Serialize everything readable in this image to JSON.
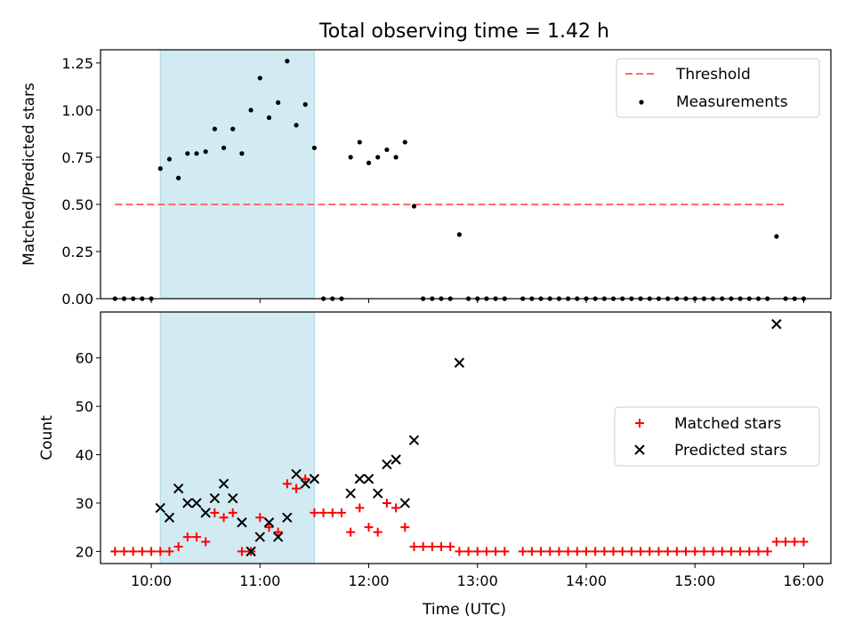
{
  "title": "Total observing time = 1.42 h",
  "x_ticks": [
    "10:00",
    "11:00",
    "12:00",
    "13:00",
    "14:00",
    "15:00",
    "16:00"
  ],
  "xlabel": "Time (UTC)",
  "shade_span": [
    "10:05",
    "11:30"
  ],
  "colors": {
    "shade": "#add8e6",
    "threshold": "#ff6b6b",
    "measurement": "#000000",
    "matched": "#ff0000",
    "predicted": "#000000"
  },
  "chart_data": [
    {
      "type": "scatter",
      "ylabel": "Matched/Predicted stars",
      "xlim": [
        "09:32",
        "16:15"
      ],
      "ylim": [
        0,
        1.32
      ],
      "y_ticks": [
        "0.00",
        "0.25",
        "0.50",
        "0.75",
        "1.00",
        "1.25"
      ],
      "legend_position": "top-right",
      "threshold": {
        "name": "Threshold",
        "y": 0.5,
        "x_range": [
          "09:40",
          "15:50"
        ]
      },
      "series": [
        {
          "name": "Measurements",
          "points": [
            [
              "09:40",
              0
            ],
            [
              "09:45",
              0
            ],
            [
              "09:50",
              0
            ],
            [
              "09:55",
              0
            ],
            [
              "10:00",
              0
            ],
            [
              "10:05",
              0.69
            ],
            [
              "10:10",
              0.74
            ],
            [
              "10:15",
              0.64
            ],
            [
              "10:20",
              0.77
            ],
            [
              "10:25",
              0.77
            ],
            [
              "10:30",
              0.78
            ],
            [
              "10:35",
              0.9
            ],
            [
              "10:40",
              0.8
            ],
            [
              "10:45",
              0.9
            ],
            [
              "10:50",
              0.77
            ],
            [
              "10:55",
              1.0
            ],
            [
              "11:00",
              1.17
            ],
            [
              "11:05",
              0.96
            ],
            [
              "11:10",
              1.04
            ],
            [
              "11:15",
              1.26
            ],
            [
              "11:20",
              0.92
            ],
            [
              "11:25",
              1.03
            ],
            [
              "11:30",
              0.8
            ],
            [
              "11:35",
              0
            ],
            [
              "11:40",
              0
            ],
            [
              "11:45",
              0
            ],
            [
              "11:50",
              0.75
            ],
            [
              "11:55",
              0.83
            ],
            [
              "12:00",
              0.72
            ],
            [
              "12:05",
              0.75
            ],
            [
              "12:10",
              0.79
            ],
            [
              "12:15",
              0.75
            ],
            [
              "12:20",
              0.83
            ],
            [
              "12:25",
              0.49
            ],
            [
              "12:30",
              0
            ],
            [
              "12:35",
              0
            ],
            [
              "12:40",
              0
            ],
            [
              "12:45",
              0
            ],
            [
              "12:50",
              0.34
            ],
            [
              "12:55",
              0
            ],
            [
              "13:00",
              0
            ],
            [
              "13:05",
              0
            ],
            [
              "13:10",
              0
            ],
            [
              "13:15",
              0
            ],
            [
              "13:25",
              0
            ],
            [
              "13:30",
              0
            ],
            [
              "13:35",
              0
            ],
            [
              "13:40",
              0
            ],
            [
              "13:45",
              0
            ],
            [
              "13:50",
              0
            ],
            [
              "13:55",
              0
            ],
            [
              "14:00",
              0
            ],
            [
              "14:05",
              0
            ],
            [
              "14:10",
              0
            ],
            [
              "14:15",
              0
            ],
            [
              "14:20",
              0
            ],
            [
              "14:25",
              0
            ],
            [
              "14:30",
              0
            ],
            [
              "14:35",
              0
            ],
            [
              "14:40",
              0
            ],
            [
              "14:45",
              0
            ],
            [
              "14:50",
              0
            ],
            [
              "14:55",
              0
            ],
            [
              "15:00",
              0
            ],
            [
              "15:05",
              0
            ],
            [
              "15:10",
              0
            ],
            [
              "15:15",
              0
            ],
            [
              "15:20",
              0
            ],
            [
              "15:25",
              0
            ],
            [
              "15:30",
              0
            ],
            [
              "15:35",
              0
            ],
            [
              "15:40",
              0
            ],
            [
              "15:45",
              0.33
            ],
            [
              "15:50",
              0
            ],
            [
              "15:55",
              0
            ],
            [
              "16:00",
              0
            ]
          ]
        }
      ]
    },
    {
      "type": "scatter",
      "ylabel": "Count",
      "xlim": [
        "09:32",
        "16:15"
      ],
      "ylim": [
        17.5,
        69.5
      ],
      "y_ticks": [
        "20",
        "30",
        "40",
        "50",
        "60"
      ],
      "legend_position": "center-right",
      "series": [
        {
          "name": "Matched stars",
          "marker": "plus",
          "points": [
            [
              "09:40",
              20
            ],
            [
              "09:45",
              20
            ],
            [
              "09:50",
              20
            ],
            [
              "09:55",
              20
            ],
            [
              "10:00",
              20
            ],
            [
              "10:05",
              20
            ],
            [
              "10:10",
              20
            ],
            [
              "10:15",
              21
            ],
            [
              "10:20",
              23
            ],
            [
              "10:25",
              23
            ],
            [
              "10:30",
              22
            ],
            [
              "10:35",
              28
            ],
            [
              "10:40",
              27
            ],
            [
              "10:45",
              28
            ],
            [
              "10:50",
              20
            ],
            [
              "10:55",
              20
            ],
            [
              "11:00",
              27
            ],
            [
              "11:05",
              25
            ],
            [
              "11:10",
              24
            ],
            [
              "11:15",
              34
            ],
            [
              "11:20",
              33
            ],
            [
              "11:25",
              35
            ],
            [
              "11:30",
              28
            ],
            [
              "11:35",
              28
            ],
            [
              "11:40",
              28
            ],
            [
              "11:45",
              28
            ],
            [
              "11:50",
              24
            ],
            [
              "11:55",
              29
            ],
            [
              "12:00",
              25
            ],
            [
              "12:05",
              24
            ],
            [
              "12:10",
              30
            ],
            [
              "12:15",
              29
            ],
            [
              "12:20",
              25
            ],
            [
              "12:25",
              21
            ],
            [
              "12:30",
              21
            ],
            [
              "12:35",
              21
            ],
            [
              "12:40",
              21
            ],
            [
              "12:45",
              21
            ],
            [
              "12:50",
              20
            ],
            [
              "12:55",
              20
            ],
            [
              "13:00",
              20
            ],
            [
              "13:05",
              20
            ],
            [
              "13:10",
              20
            ],
            [
              "13:15",
              20
            ],
            [
              "13:25",
              20
            ],
            [
              "13:30",
              20
            ],
            [
              "13:35",
              20
            ],
            [
              "13:40",
              20
            ],
            [
              "13:45",
              20
            ],
            [
              "13:50",
              20
            ],
            [
              "13:55",
              20
            ],
            [
              "14:00",
              20
            ],
            [
              "14:05",
              20
            ],
            [
              "14:10",
              20
            ],
            [
              "14:15",
              20
            ],
            [
              "14:20",
              20
            ],
            [
              "14:25",
              20
            ],
            [
              "14:30",
              20
            ],
            [
              "14:35",
              20
            ],
            [
              "14:40",
              20
            ],
            [
              "14:45",
              20
            ],
            [
              "14:50",
              20
            ],
            [
              "14:55",
              20
            ],
            [
              "15:00",
              20
            ],
            [
              "15:05",
              20
            ],
            [
              "15:10",
              20
            ],
            [
              "15:15",
              20
            ],
            [
              "15:20",
              20
            ],
            [
              "15:25",
              20
            ],
            [
              "15:30",
              20
            ],
            [
              "15:35",
              20
            ],
            [
              "15:40",
              20
            ],
            [
              "15:45",
              22
            ],
            [
              "15:50",
              22
            ],
            [
              "15:55",
              22
            ],
            [
              "16:00",
              22
            ]
          ]
        },
        {
          "name": "Predicted stars",
          "marker": "x",
          "points": [
            [
              "10:05",
              29
            ],
            [
              "10:10",
              27
            ],
            [
              "10:15",
              33
            ],
            [
              "10:20",
              30
            ],
            [
              "10:25",
              30
            ],
            [
              "10:30",
              28
            ],
            [
              "10:35",
              31
            ],
            [
              "10:40",
              34
            ],
            [
              "10:45",
              31
            ],
            [
              "10:50",
              26
            ],
            [
              "10:55",
              20
            ],
            [
              "11:00",
              23
            ],
            [
              "11:05",
              26
            ],
            [
              "11:10",
              23
            ],
            [
              "11:15",
              27
            ],
            [
              "11:20",
              36
            ],
            [
              "11:25",
              34
            ],
            [
              "11:30",
              35
            ],
            [
              "11:50",
              32
            ],
            [
              "11:55",
              35
            ],
            [
              "12:00",
              35
            ],
            [
              "12:05",
              32
            ],
            [
              "12:10",
              38
            ],
            [
              "12:15",
              39
            ],
            [
              "12:20",
              30
            ],
            [
              "12:25",
              43
            ],
            [
              "12:50",
              59
            ],
            [
              "15:45",
              67
            ]
          ]
        }
      ]
    }
  ]
}
